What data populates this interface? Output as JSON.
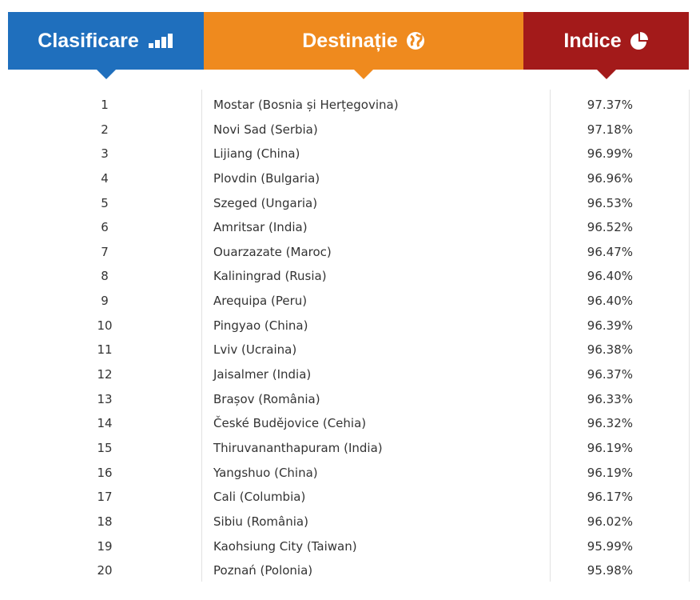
{
  "header": {
    "columns": [
      "Clasificare",
      "Destinație",
      "Indice"
    ]
  },
  "table": {
    "rows": [
      [
        1,
        "Mostar (Bosnia și Herțegovina)",
        "97.37%"
      ],
      [
        2,
        "Novi Sad (Serbia)",
        "97.18%"
      ],
      [
        3,
        "Lijiang (China)",
        "96.99%"
      ],
      [
        4,
        "Plovdin (Bulgaria)",
        "96.96%"
      ],
      [
        5,
        "Szeged (Ungaria)",
        "96.53%"
      ],
      [
        6,
        "Amritsar (India)",
        "96.52%"
      ],
      [
        7,
        "Ouarzazate (Maroc)",
        "96.47%"
      ],
      [
        8,
        "Kaliningrad (Rusia)",
        "96.40%"
      ],
      [
        9,
        "Arequipa (Peru)",
        "96.40%"
      ],
      [
        10,
        "Pingyao (China)",
        "96.39%"
      ],
      [
        11,
        "Lviv (Ucraina)",
        "96.38%"
      ],
      [
        12,
        "Jaisalmer (India)",
        "96.37%"
      ],
      [
        13,
        "Brașov (România)",
        "96.33%"
      ],
      [
        14,
        "České Budějovice (Cehia)",
        "96.32%"
      ],
      [
        15,
        "Thiruvananthapuram (India)",
        "96.19%"
      ],
      [
        16,
        "Yangshuo (China)",
        "96.19%"
      ],
      [
        17,
        "Cali (Columbia)",
        "96.17%"
      ],
      [
        18,
        "Sibiu (România)",
        "96.02%"
      ],
      [
        19,
        "Kaohsiung City (Taiwan)",
        "95.99%"
      ],
      [
        20,
        "Poznań (Polonia)",
        "95.98%"
      ]
    ]
  }
}
